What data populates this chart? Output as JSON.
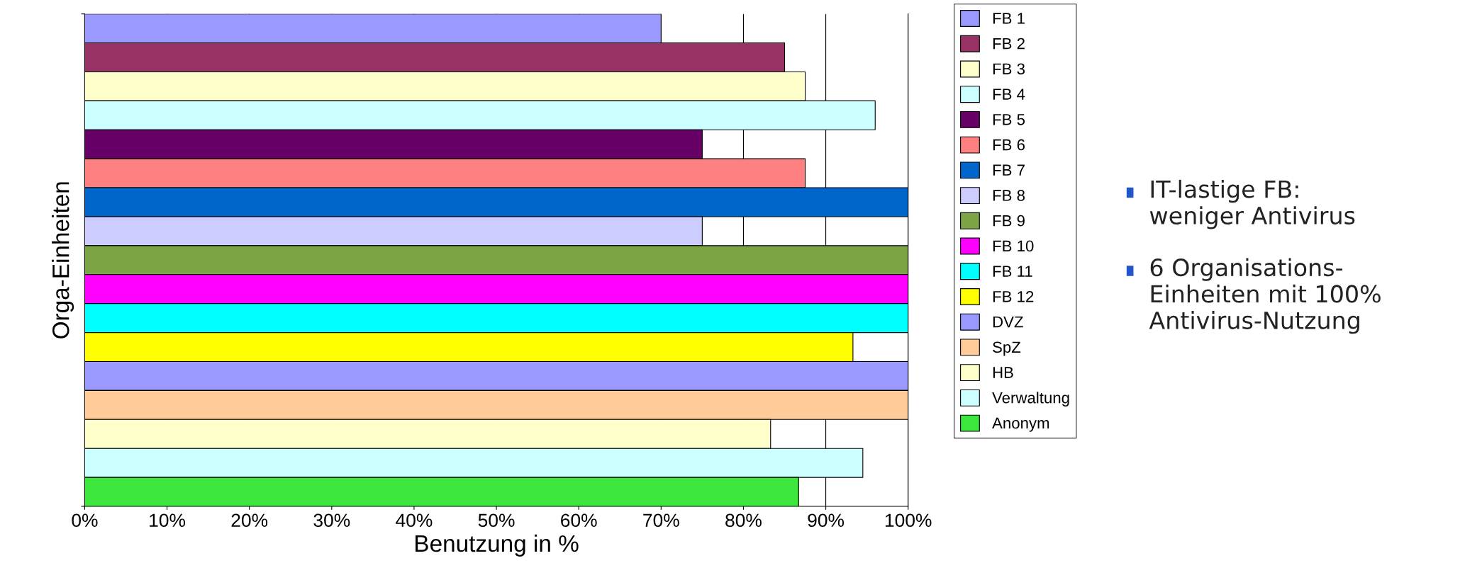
{
  "chart_data": {
    "type": "bar",
    "orientation": "horizontal",
    "xlabel": "Benutzung in %",
    "ylabel": "Orga-Einheiten",
    "categories": [
      null
    ],
    "xlim": [
      0,
      100
    ],
    "xticks": [
      {
        "value": 0,
        "label": "0%"
      },
      {
        "value": 10,
        "label": "10%"
      },
      {
        "value": 20,
        "label": "20%"
      },
      {
        "value": 30,
        "label": "30%"
      },
      {
        "value": 40,
        "label": "40%"
      },
      {
        "value": 50,
        "label": "50%"
      },
      {
        "value": 60,
        "label": "60%"
      },
      {
        "value": 70,
        "label": "70%"
      },
      {
        "value": 80,
        "label": "80%"
      },
      {
        "value": 90,
        "label": "90%"
      },
      {
        "value": 100,
        "label": "100%"
      }
    ],
    "grid": "x",
    "legend": "right",
    "series": [
      {
        "name": "FB 1",
        "color": "#9999ff",
        "values": [
          70
        ]
      },
      {
        "name": "FB 2",
        "color": "#993366",
        "values": [
          85
        ]
      },
      {
        "name": "FB 3",
        "color": "#ffffcc",
        "values": [
          87.5
        ]
      },
      {
        "name": "FB 4",
        "color": "#ccffff",
        "values": [
          96
        ]
      },
      {
        "name": "FB 5",
        "color": "#660066",
        "values": [
          75
        ]
      },
      {
        "name": "FB 6",
        "color": "#ff8080",
        "values": [
          87.5
        ]
      },
      {
        "name": "FB 7",
        "color": "#0066cc",
        "values": [
          100
        ]
      },
      {
        "name": "FB 8",
        "color": "#ccccff",
        "values": [
          75
        ]
      },
      {
        "name": "FB 9",
        "color": "#7ba445",
        "values": [
          100
        ]
      },
      {
        "name": "FB 10",
        "color": "#ff00ff",
        "values": [
          100
        ]
      },
      {
        "name": "FB 11",
        "color": "#00ffff",
        "values": [
          100
        ]
      },
      {
        "name": "FB 12",
        "color": "#ffff00",
        "values": [
          93.3
        ]
      },
      {
        "name": "DVZ",
        "color": "#9999ff",
        "values": [
          100
        ]
      },
      {
        "name": "SpZ",
        "color": "#ffcc99",
        "values": [
          100
        ]
      },
      {
        "name": "HB",
        "color": "#ffffcc",
        "values": [
          83.3
        ]
      },
      {
        "name": "Verwaltung",
        "color": "#ccffff",
        "values": [
          94.5
        ]
      },
      {
        "name": "Anonym",
        "color": "#3ce63c",
        "values": [
          86.7
        ]
      }
    ],
    "annotations": [
      "IT-lastige FB:\nweniger Antivirus",
      "6 Organisations-\nEinheiten mit 100%\nAntivirus-Nutzung"
    ]
  }
}
